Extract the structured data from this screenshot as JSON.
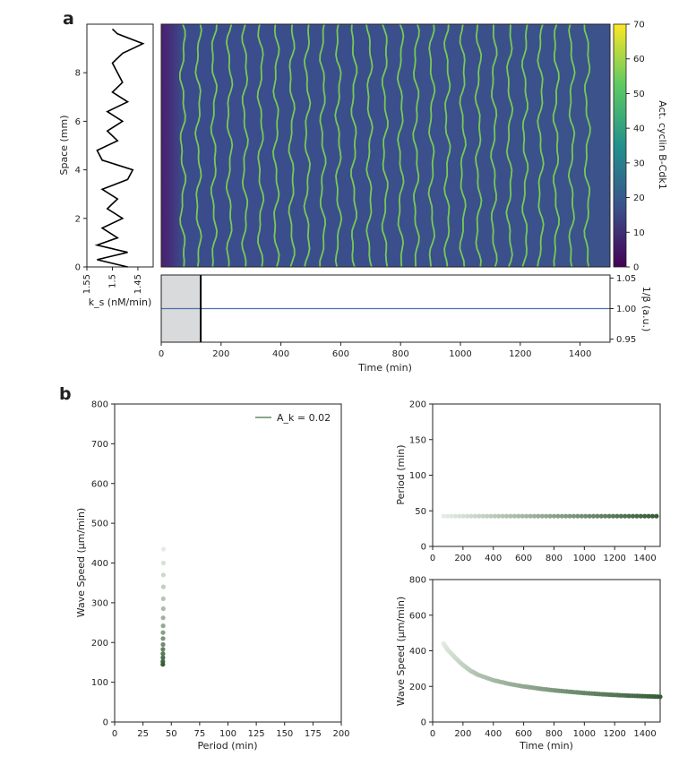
{
  "figure": {
    "panel_a_label": "a",
    "panel_b_label": "b"
  },
  "chart_data": [
    {
      "id": "a_profile",
      "type": "line",
      "xlabel": "k_s (nM/min)",
      "ylabel": "Space (mm)",
      "xticks": [
        "1.55",
        "1.5",
        "1.45"
      ],
      "xlim": [
        1.55,
        1.42
      ],
      "ylim": [
        0,
        10
      ],
      "yticks": [
        0,
        2,
        4,
        6,
        8
      ],
      "description_series": {
        "y": [
          0.0,
          0.3,
          0.6,
          0.9,
          1.2,
          1.6,
          2.0,
          2.4,
          2.8,
          3.2,
          3.6,
          4.0,
          4.4,
          4.8,
          5.2,
          5.6,
          6.0,
          6.4,
          6.8,
          7.2,
          7.6,
          8.0,
          8.4,
          8.8,
          9.2,
          9.6,
          9.8
        ],
        "x": [
          1.47,
          1.53,
          1.47,
          1.53,
          1.49,
          1.52,
          1.48,
          1.51,
          1.49,
          1.52,
          1.47,
          1.46,
          1.52,
          1.53,
          1.49,
          1.51,
          1.48,
          1.51,
          1.47,
          1.5,
          1.48,
          1.49,
          1.5,
          1.48,
          1.44,
          1.49,
          1.5
        ]
      }
    },
    {
      "id": "a_heatmap",
      "type": "heatmap",
      "colorbar_label": "Act. cyclin B-Cdk1",
      "colorbar_ticks": [
        0,
        10,
        20,
        30,
        40,
        50,
        60,
        70
      ],
      "colorbar_range": [
        0,
        70
      ],
      "ylim": [
        0,
        10
      ],
      "xlim": [
        0,
        1500
      ],
      "wave_count": 27,
      "first_wave_time": 72,
      "wave_period": 52,
      "colors": {
        "low": "#3b3f8c",
        "high": "#79d151",
        "cmap": [
          "#440154",
          "#3b528b",
          "#21918c",
          "#5ec962",
          "#fde725"
        ]
      }
    },
    {
      "id": "a_beta",
      "type": "line",
      "xlabel": "Time (min)",
      "ylabel": "1/β (a.u.)",
      "xlim": [
        0,
        1500
      ],
      "xticks": [
        0,
        200,
        400,
        600,
        800,
        1000,
        1200,
        1400
      ],
      "ylim": [
        0.945,
        1.055
      ],
      "yticks": [
        "0.95",
        "1.00",
        "1.05"
      ],
      "shaded_region": [
        0,
        132
      ],
      "marker_line": 132,
      "series": [
        {
          "x": [
            0,
            1500
          ],
          "y": [
            1.0,
            1.0
          ]
        }
      ],
      "colors": {
        "line": "#4c72b0",
        "shade": "#d8dadb"
      }
    },
    {
      "id": "b_speed_vs_period",
      "type": "scatter",
      "xlabel": "Period (min)",
      "ylabel": "Wave Speed (μm/min)",
      "xlim": [
        0,
        200
      ],
      "ylim": [
        0,
        800
      ],
      "xticks": [
        0,
        25,
        50,
        75,
        100,
        125,
        150,
        175,
        200
      ],
      "yticks": [
        0,
        100,
        200,
        300,
        400,
        500,
        600,
        700,
        800
      ],
      "legend": {
        "label": "A_k = 0.02",
        "placement": "top-right"
      },
      "series": [
        {
          "x": [
            43.1,
            43.1,
            43.0,
            43.0,
            42.9,
            42.9,
            42.8,
            42.8,
            42.7,
            42.7,
            42.7,
            42.6,
            42.6,
            42.6,
            42.5,
            42.5
          ],
          "y": [
            435,
            400,
            370,
            340,
            310,
            285,
            262,
            242,
            225,
            210,
            195,
            183,
            172,
            162,
            152,
            145
          ]
        }
      ],
      "colors": {
        "start": "#e3ece3",
        "end": "#365c36"
      }
    },
    {
      "id": "b_period_vs_time",
      "type": "scatter",
      "xlabel": "",
      "ylabel": "Period (min)",
      "xlim": [
        0,
        1500
      ],
      "ylim": [
        0,
        200
      ],
      "xticks": [
        0,
        200,
        400,
        600,
        800,
        1000,
        1200,
        1400
      ],
      "yticks": [
        0,
        50,
        100,
        150,
        200
      ],
      "series": [
        {
          "x_start": 72,
          "x_end": 1500,
          "step": 26,
          "y": 42.5
        }
      ],
      "colors": {
        "start": "#e3ece3",
        "end": "#365c36"
      }
    },
    {
      "id": "b_speed_vs_time",
      "type": "scatter",
      "xlabel": "Time (min)",
      "ylabel": "Wave Speed (μm/min)",
      "xlim": [
        0,
        1500
      ],
      "ylim": [
        0,
        800
      ],
      "xticks": [
        0,
        200,
        400,
        600,
        800,
        1000,
        1200,
        1400
      ],
      "yticks": [
        0,
        200,
        400,
        600,
        800
      ],
      "series": [
        {
          "x": [
            72,
            100,
            150,
            200,
            250,
            300,
            400,
            500,
            600,
            700,
            800,
            900,
            1000,
            1100,
            1200,
            1300,
            1400,
            1500
          ],
          "y": [
            440,
            405,
            360,
            320,
            288,
            265,
            235,
            215,
            200,
            188,
            178,
            170,
            163,
            157,
            152,
            148,
            145,
            142
          ]
        }
      ],
      "colors": {
        "start": "#e3ece3",
        "end": "#365c36"
      }
    }
  ]
}
